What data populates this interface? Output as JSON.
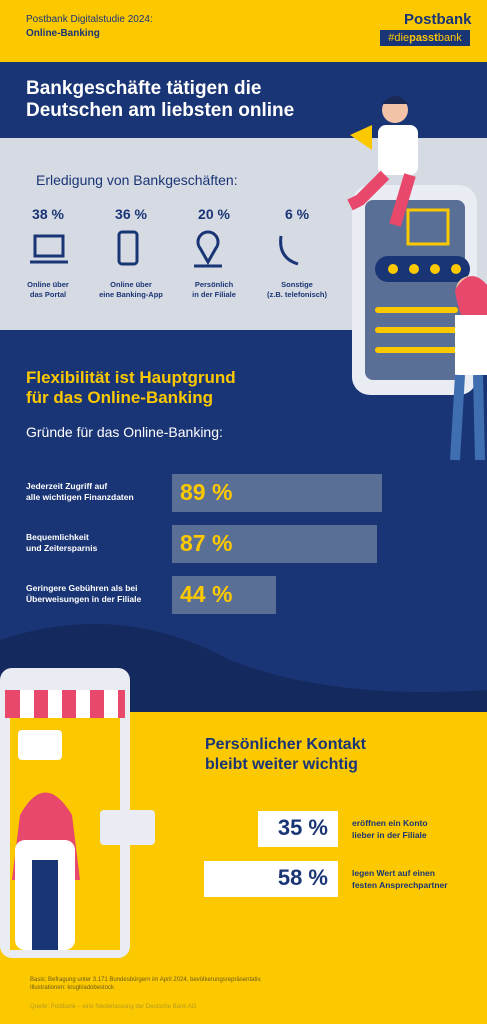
{
  "header": {
    "study": "Postbank Digitalstudie 2024:",
    "topic": "Online-Banking",
    "brand": "Postbank",
    "hashtag": [
      "#die",
      "passt",
      "bank"
    ]
  },
  "section1": {
    "title_lines": [
      "Bankgeschäfte tätigen die",
      "Deutschen am liebsten online"
    ],
    "subtitle": "Erledigung von Bankgeschäften:",
    "items": [
      {
        "value_label": "38 %",
        "lines": [
          "Online über",
          "das Portal"
        ]
      },
      {
        "value_label": "36 %",
        "lines": [
          "Online über",
          "eine Banking-App"
        ]
      },
      {
        "value_label": "20 %",
        "lines": [
          "Persönlich",
          "in der Filiale"
        ]
      },
      {
        "value_label": "6 %",
        "lines": [
          "Sonstige",
          "(z.B. telefonisch)"
        ]
      }
    ]
  },
  "section2": {
    "title_lines": [
      "Flexibilität ist Hauptgrund",
      "für das Online-Banking"
    ],
    "subtitle": "Gründe für das Online-Banking:",
    "labels": [
      [
        "Jederzeit Zugriff auf",
        "alle wichtigen Finanzdaten"
      ],
      [
        "Bequemlichkeit",
        "und Zeitersparnis"
      ],
      [
        "Geringere Gebühren als bei",
        "Überweisungen in der Filiale"
      ]
    ],
    "values": [
      89,
      87,
      44
    ],
    "value_labels": [
      "89 %",
      "87 %",
      "44 %"
    ]
  },
  "section3": {
    "title_lines": [
      "Persönlicher Kontakt",
      "bleibt weiter wichtig"
    ],
    "stats": [
      {
        "value_label": "35 %",
        "lines": [
          "eröffnen ein Konto",
          "lieber in der Filiale"
        ]
      },
      {
        "value_label": "58 %",
        "lines": [
          "legen Wert auf einen",
          "festen Ansprechpartner"
        ]
      }
    ]
  },
  "footer": {
    "lines": [
      "Basis: Befragung unter 3.171 Bundesbürgern im April 2024, bevölkerungsrepräsentativ.",
      "Illustrationen: krugli/adobestock"
    ],
    "source": "Quelle: Postbank – eine Niederlassung der Deutsche Bank AG"
  }
}
